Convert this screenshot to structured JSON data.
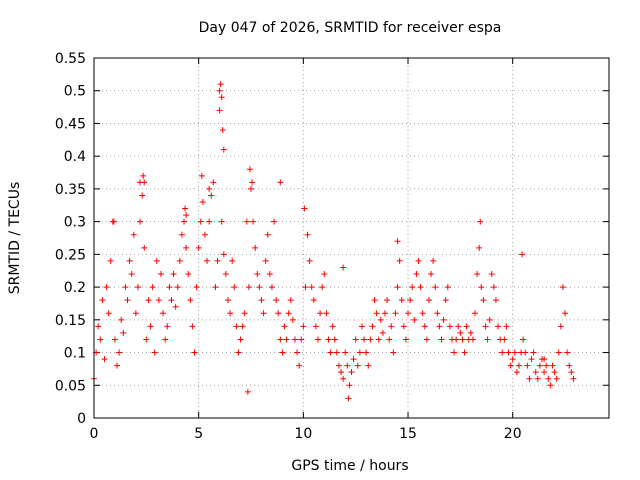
{
  "chart_data": {
    "type": "scatter",
    "title": "Day 047 of 2026, SRMTID for receiver espa",
    "xlabel": "GPS time / hours",
    "ylabel": "SRMTID / TECUs",
    "xlim": [
      0,
      24.6
    ],
    "ylim": [
      0,
      0.55
    ],
    "xticks": [
      0,
      5,
      10,
      15,
      20
    ],
    "yticks": [
      0,
      0.05,
      0.1,
      0.15,
      0.2,
      0.25,
      0.3,
      0.35,
      0.4,
      0.45,
      0.5,
      0.55
    ],
    "xtick_labels": [
      "0",
      "5",
      "10",
      "15",
      "20"
    ],
    "ytick_labels": [
      "0",
      "0.05",
      "0.1",
      "0.15",
      "0.2",
      "0.25",
      "0.3",
      "0.35",
      "0.4",
      "0.45",
      "0.5",
      "0.55"
    ],
    "grid": true,
    "marker": "+",
    "series": [
      {
        "name": "SRMTID",
        "color": "#ff0000",
        "x": [
          0.0,
          0.1,
          0.2,
          0.3,
          0.4,
          0.5,
          0.6,
          0.7,
          0.8,
          0.9,
          1.0,
          1.1,
          1.2,
          1.3,
          1.4,
          1.5,
          1.6,
          1.7,
          1.8,
          1.9,
          2.0,
          2.1,
          2.2,
          2.3,
          2.4,
          2.5,
          2.6,
          2.7,
          2.8,
          2.9,
          3.0,
          3.1,
          3.2,
          3.3,
          3.4,
          3.5,
          3.6,
          3.7,
          3.8,
          3.9,
          4.0,
          4.1,
          4.2,
          4.3,
          4.4,
          4.5,
          4.6,
          4.7,
          4.8,
          4.9,
          5.0,
          5.1,
          5.2,
          5.3,
          5.4,
          5.5,
          5.6,
          5.7,
          5.8,
          5.9,
          6.0,
          6.1,
          6.2,
          6.3,
          6.4,
          6.5,
          6.6,
          6.7,
          6.8,
          6.9,
          7.0,
          7.1,
          7.2,
          7.3,
          7.4,
          7.5,
          7.6,
          7.7,
          7.8,
          7.9,
          8.0,
          8.1,
          8.2,
          8.3,
          8.4,
          8.5,
          8.6,
          8.7,
          8.8,
          8.9,
          9.0,
          9.1,
          9.2,
          9.3,
          9.4,
          9.5,
          9.6,
          9.7,
          9.8,
          9.9,
          10.0,
          10.1,
          10.2,
          10.3,
          10.4,
          10.5,
          10.6,
          10.7,
          10.8,
          10.9,
          11.0,
          11.1,
          11.2,
          11.3,
          11.4,
          11.5,
          11.6,
          11.7,
          11.8,
          11.9,
          12.0,
          12.1,
          12.2,
          12.3,
          12.4,
          12.5,
          12.6,
          12.7,
          12.8,
          12.9,
          13.0,
          13.1,
          13.2,
          13.3,
          13.4,
          13.5,
          13.6,
          13.7,
          13.8,
          13.9,
          14.0,
          14.1,
          14.2,
          14.3,
          14.4,
          14.5,
          14.6,
          14.7,
          14.8,
          14.9,
          15.0,
          15.1,
          15.2,
          15.3,
          15.4,
          15.5,
          15.6,
          15.7,
          15.8,
          15.9,
          16.0,
          16.1,
          16.2,
          16.3,
          16.4,
          16.5,
          16.6,
          16.7,
          16.8,
          16.9,
          17.0,
          17.1,
          17.2,
          17.3,
          17.4,
          17.5,
          17.6,
          17.7,
          17.8,
          17.9,
          18.0,
          18.1,
          18.2,
          18.3,
          18.4,
          18.5,
          18.6,
          18.7,
          18.8,
          18.9,
          19.0,
          19.1,
          19.2,
          19.3,
          19.4,
          19.5,
          19.6,
          19.7,
          19.8,
          19.9,
          20.0,
          20.1,
          20.2,
          20.3,
          20.4,
          20.5,
          20.6,
          20.7,
          20.8,
          20.9,
          21.0,
          21.1,
          21.2,
          21.3,
          21.4,
          21.5,
          21.6,
          21.7,
          21.8,
          21.9,
          22.0,
          22.1,
          22.2,
          22.3,
          22.4,
          22.5,
          22.6,
          22.7,
          22.8,
          22.9,
          6.0,
          6.05,
          6.1,
          6.15,
          6.2,
          2.35,
          2.4,
          4.35,
          4.4,
          5.15,
          5.5,
          7.45,
          7.55,
          8.9,
          10.05,
          11.9,
          12.15,
          14.5,
          18.45,
          20.45,
          21.5,
          7.35,
          2.2,
          0.95
        ],
        "y": [
          0.06,
          0.1,
          0.14,
          0.12,
          0.18,
          0.09,
          0.2,
          0.16,
          0.24,
          0.3,
          0.12,
          0.08,
          0.1,
          0.15,
          0.13,
          0.2,
          0.18,
          0.24,
          0.22,
          0.28,
          0.16,
          0.2,
          0.3,
          0.34,
          0.26,
          0.12,
          0.18,
          0.14,
          0.2,
          0.1,
          0.24,
          0.18,
          0.22,
          0.16,
          0.12,
          0.14,
          0.2,
          0.18,
          0.22,
          0.17,
          0.2,
          0.24,
          0.28,
          0.3,
          0.26,
          0.22,
          0.18,
          0.14,
          0.1,
          0.2,
          0.26,
          0.3,
          0.33,
          0.28,
          0.24,
          0.3,
          0.34,
          0.36,
          0.2,
          0.24,
          0.47,
          0.3,
          0.25,
          0.22,
          0.18,
          0.16,
          0.24,
          0.2,
          0.14,
          0.1,
          0.12,
          0.14,
          0.16,
          0.3,
          0.2,
          0.35,
          0.3,
          0.26,
          0.22,
          0.2,
          0.18,
          0.16,
          0.24,
          0.28,
          0.22,
          0.2,
          0.3,
          0.18,
          0.16,
          0.12,
          0.1,
          0.14,
          0.12,
          0.16,
          0.18,
          0.15,
          0.12,
          0.1,
          0.08,
          0.12,
          0.14,
          0.2,
          0.28,
          0.24,
          0.2,
          0.18,
          0.14,
          0.12,
          0.16,
          0.2,
          0.22,
          0.16,
          0.12,
          0.1,
          0.14,
          0.12,
          0.1,
          0.08,
          0.07,
          0.06,
          0.1,
          0.08,
          0.05,
          0.07,
          0.09,
          0.12,
          0.08,
          0.1,
          0.14,
          0.12,
          0.1,
          0.08,
          0.12,
          0.14,
          0.18,
          0.16,
          0.12,
          0.15,
          0.13,
          0.16,
          0.18,
          0.12,
          0.14,
          0.1,
          0.16,
          0.2,
          0.24,
          0.18,
          0.14,
          0.12,
          0.16,
          0.18,
          0.2,
          0.15,
          0.22,
          0.24,
          0.2,
          0.16,
          0.14,
          0.12,
          0.18,
          0.22,
          0.24,
          0.2,
          0.16,
          0.14,
          0.12,
          0.15,
          0.18,
          0.2,
          0.14,
          0.12,
          0.1,
          0.12,
          0.14,
          0.13,
          0.12,
          0.1,
          0.14,
          0.12,
          0.13,
          0.12,
          0.16,
          0.22,
          0.26,
          0.2,
          0.18,
          0.14,
          0.12,
          0.15,
          0.22,
          0.2,
          0.18,
          0.14,
          0.12,
          0.1,
          0.12,
          0.14,
          0.1,
          0.08,
          0.09,
          0.1,
          0.07,
          0.08,
          0.1,
          0.12,
          0.1,
          0.08,
          0.06,
          0.09,
          0.1,
          0.07,
          0.06,
          0.08,
          0.09,
          0.07,
          0.08,
          0.06,
          0.05,
          0.08,
          0.07,
          0.06,
          0.1,
          0.14,
          0.2,
          0.16,
          0.1,
          0.08,
          0.07,
          0.06,
          0.5,
          0.51,
          0.49,
          0.44,
          0.41,
          0.37,
          0.36,
          0.32,
          0.31,
          0.37,
          0.35,
          0.38,
          0.36,
          0.36,
          0.32,
          0.23,
          0.03,
          0.27,
          0.3,
          0.25,
          0.09,
          0.04,
          0.36,
          0.3
        ]
      }
    ]
  }
}
